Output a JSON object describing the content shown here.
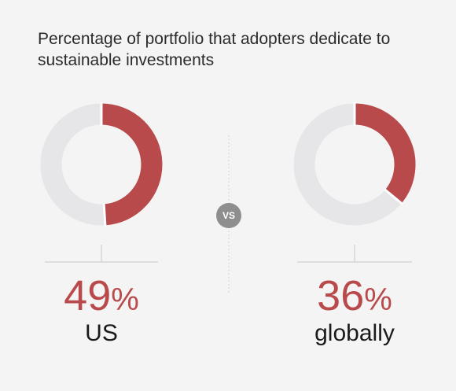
{
  "title_lines": [
    "Percentage of portfolio that adopters dedicate to",
    "sustainable investments"
  ],
  "vs_label": "VS",
  "colors": {
    "accent": "#b94a4b",
    "track": "#e6e6e9",
    "separator": "#c9c9c9",
    "background": "#f4f4f4"
  },
  "chart_data": {
    "type": "pie",
    "title": "Percentage of portfolio that adopters dedicate to sustainable investments",
    "unit": "%",
    "series": [
      {
        "name": "US",
        "value_text": "49",
        "value": 49
      },
      {
        "name": "globally",
        "value_text": "36",
        "value": 36
      }
    ]
  }
}
